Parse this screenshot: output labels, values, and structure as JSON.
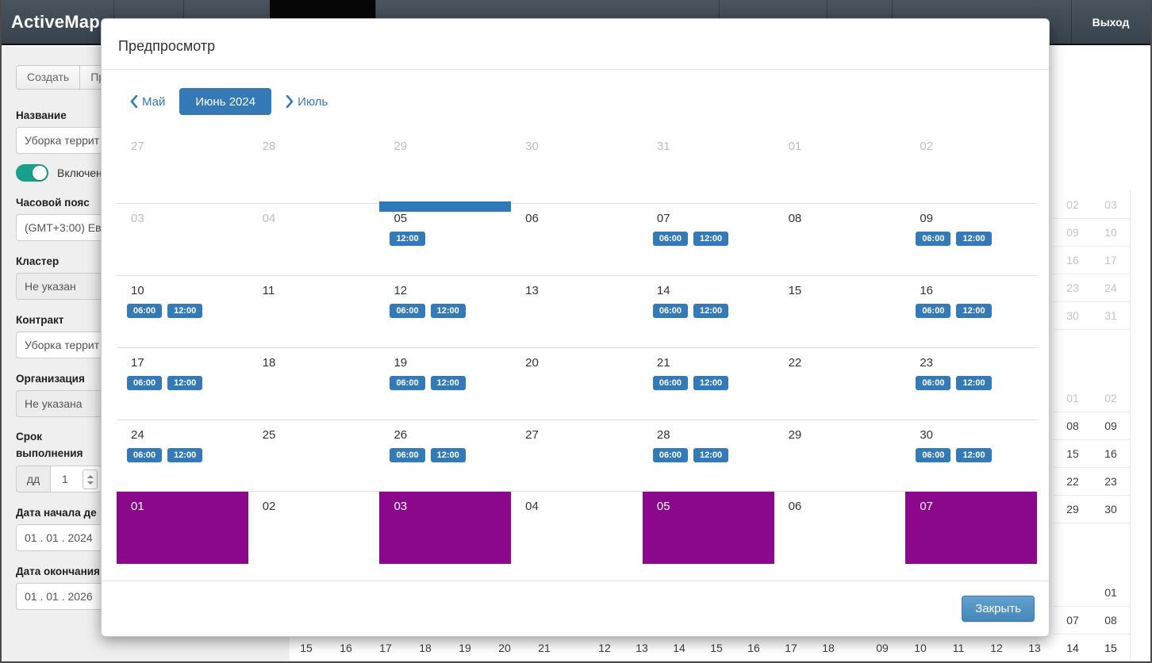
{
  "colors": {
    "accent": "#337ab7",
    "selected_day": "#8b078c",
    "toggle_on": "#17a08c",
    "today_marker": "#2e7ab8"
  },
  "header": {
    "logo": "ActiveMap",
    "logout_label": "Выход"
  },
  "sidebar": {
    "toolbar": {
      "create_label": "Создать",
      "preview_label": "Пр"
    },
    "form": {
      "name_label": "Название",
      "name_value": "Уборка террит",
      "enabled_label": "Включено",
      "timezone_label": "Часовой пояс",
      "timezone_value": "(GMT+3:00) Ев",
      "cluster_label": "Кластер",
      "cluster_value": "Не указан",
      "contract_label": "Контракт",
      "contract_value": "Уборка террит",
      "organization_label": "Организация",
      "organization_value": "Не указана",
      "term_label_line1": "Срок",
      "term_label_line2": "выполнения",
      "term_unit": "дд",
      "term_value": "1",
      "start_label": "Дата начала де",
      "start_value": "01 . 01 . 2024",
      "end_label": "Дата окончания",
      "end_value": "01 . 01 . 2026"
    }
  },
  "modal": {
    "title": "Предпросмотр",
    "close_label": "Закрыть",
    "nav": {
      "prev": "Май",
      "current": "Июнь 2024",
      "next": "Июль"
    },
    "weeks": [
      [
        {
          "day": "27",
          "muted": true
        },
        {
          "day": "28",
          "muted": true
        },
        {
          "day": "29",
          "muted": true
        },
        {
          "day": "30",
          "muted": true
        },
        {
          "day": "31",
          "muted": true
        },
        {
          "day": "01",
          "muted": true
        },
        {
          "day": "02",
          "muted": true
        }
      ],
      [
        {
          "day": "03",
          "muted": true
        },
        {
          "day": "04",
          "muted": true
        },
        {
          "day": "05",
          "today": true,
          "badges": [
            "12:00"
          ]
        },
        {
          "day": "06"
        },
        {
          "day": "07",
          "badges": [
            "06:00",
            "12:00"
          ]
        },
        {
          "day": "08"
        },
        {
          "day": "09",
          "badges": [
            "06:00",
            "12:00"
          ]
        }
      ],
      [
        {
          "day": "10",
          "badges": [
            "06:00",
            "12:00"
          ]
        },
        {
          "day": "11"
        },
        {
          "day": "12",
          "badges": [
            "06:00",
            "12:00"
          ]
        },
        {
          "day": "13"
        },
        {
          "day": "14",
          "badges": [
            "06:00",
            "12:00"
          ]
        },
        {
          "day": "15"
        },
        {
          "day": "16",
          "badges": [
            "06:00",
            "12:00"
          ]
        }
      ],
      [
        {
          "day": "17",
          "badges": [
            "06:00",
            "12:00"
          ]
        },
        {
          "day": "18"
        },
        {
          "day": "19",
          "badges": [
            "06:00",
            "12:00"
          ]
        },
        {
          "day": "20"
        },
        {
          "day": "21",
          "badges": [
            "06:00",
            "12:00"
          ]
        },
        {
          "day": "22"
        },
        {
          "day": "23",
          "badges": [
            "06:00",
            "12:00"
          ]
        }
      ],
      [
        {
          "day": "24",
          "badges": [
            "06:00",
            "12:00"
          ]
        },
        {
          "day": "25"
        },
        {
          "day": "26",
          "badges": [
            "06:00",
            "12:00"
          ]
        },
        {
          "day": "27"
        },
        {
          "day": "28",
          "badges": [
            "06:00",
            "12:00"
          ]
        },
        {
          "day": "29"
        },
        {
          "day": "30",
          "badges": [
            "06:00",
            "12:00"
          ]
        }
      ],
      [
        {
          "day": "01",
          "selected": true
        },
        {
          "day": "02"
        },
        {
          "day": "03",
          "selected": true
        },
        {
          "day": "04"
        },
        {
          "day": "05",
          "selected": true
        },
        {
          "day": "06"
        },
        {
          "day": "07",
          "selected": true
        }
      ]
    ]
  },
  "background_calendar": {
    "right_strip_top": {
      "muted": true,
      "rows": [
        [
          "02",
          "03"
        ],
        [
          "09",
          "10"
        ],
        [
          "16",
          "17"
        ],
        [
          "23",
          "24"
        ],
        [
          "30",
          "31"
        ]
      ]
    },
    "right_strip_mid": {
      "muted_rows": [
        0
      ],
      "rows": [
        [
          "01",
          "02"
        ],
        [
          "08",
          "09"
        ],
        [
          "15",
          "16"
        ],
        [
          "22",
          "23"
        ],
        [
          "29",
          "30"
        ]
      ]
    },
    "right_strip_low": {
      "rows": [
        [
          "",
          "01"
        ],
        [
          "07",
          "08"
        ],
        [
          "14",
          "15"
        ]
      ]
    },
    "bottom_rows": [
      [
        "15",
        "16",
        "17",
        "18",
        "19",
        "20",
        "21"
      ],
      [
        "12",
        "13",
        "14",
        "15",
        "16",
        "17",
        "18"
      ],
      [
        "09",
        "10",
        "11",
        "12",
        "13",
        "14",
        "15"
      ]
    ]
  }
}
